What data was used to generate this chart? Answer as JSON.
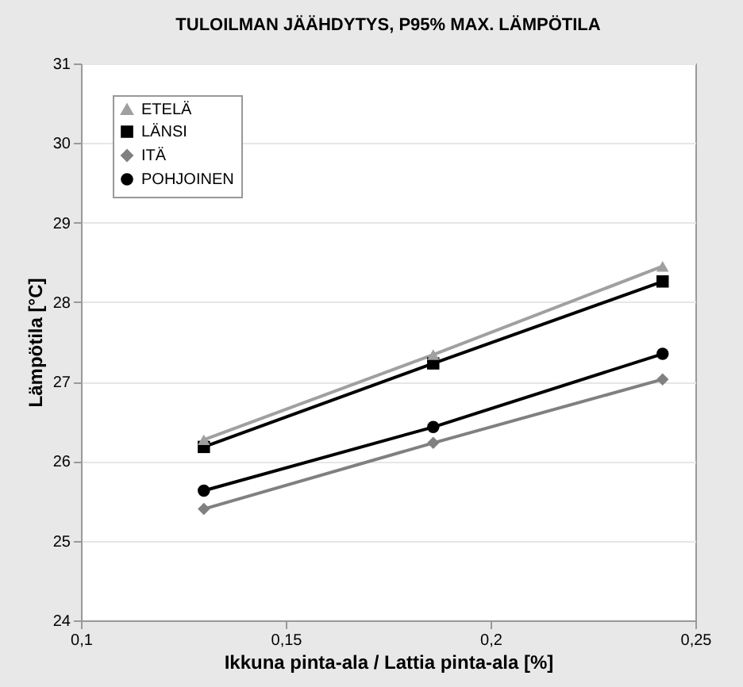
{
  "chart_data": {
    "type": "line",
    "title": "TULOILMAN JÄÄHDYTYS, P95% MAX. LÄMPÖTILA",
    "xlabel": "Ikkuna pinta-ala / Lattia pinta-ala [%]",
    "ylabel": "Lämpötila [°C]",
    "x": [
      0.13,
      0.186,
      0.242
    ],
    "series": [
      {
        "name": "ETELÄ",
        "color": "#a0a0a0",
        "marker": "triangle",
        "values": [
          26.27,
          27.34,
          28.45
        ]
      },
      {
        "name": "LÄNSI",
        "color": "#000000",
        "marker": "square",
        "values": [
          26.18,
          27.23,
          28.26
        ]
      },
      {
        "name": "ITÄ",
        "color": "#808080",
        "marker": "diamond",
        "values": [
          25.4,
          26.23,
          27.03
        ]
      },
      {
        "name": "POHJOINEN",
        "color": "#000000",
        "marker": "circle",
        "values": [
          25.63,
          26.43,
          27.35
        ]
      }
    ],
    "xlim": [
      0.1,
      0.25
    ],
    "xticks": [
      {
        "value": 0.1,
        "label": "0,1"
      },
      {
        "value": 0.15,
        "label": "0,15"
      },
      {
        "value": 0.2,
        "label": "0,2"
      },
      {
        "value": 0.25,
        "label": "0,25"
      }
    ],
    "ylim": [
      24,
      31
    ],
    "yticks": [
      24,
      25,
      26,
      27,
      28,
      29,
      30,
      31
    ],
    "grid": "y",
    "legend": "top left",
    "line_style": "solid"
  }
}
